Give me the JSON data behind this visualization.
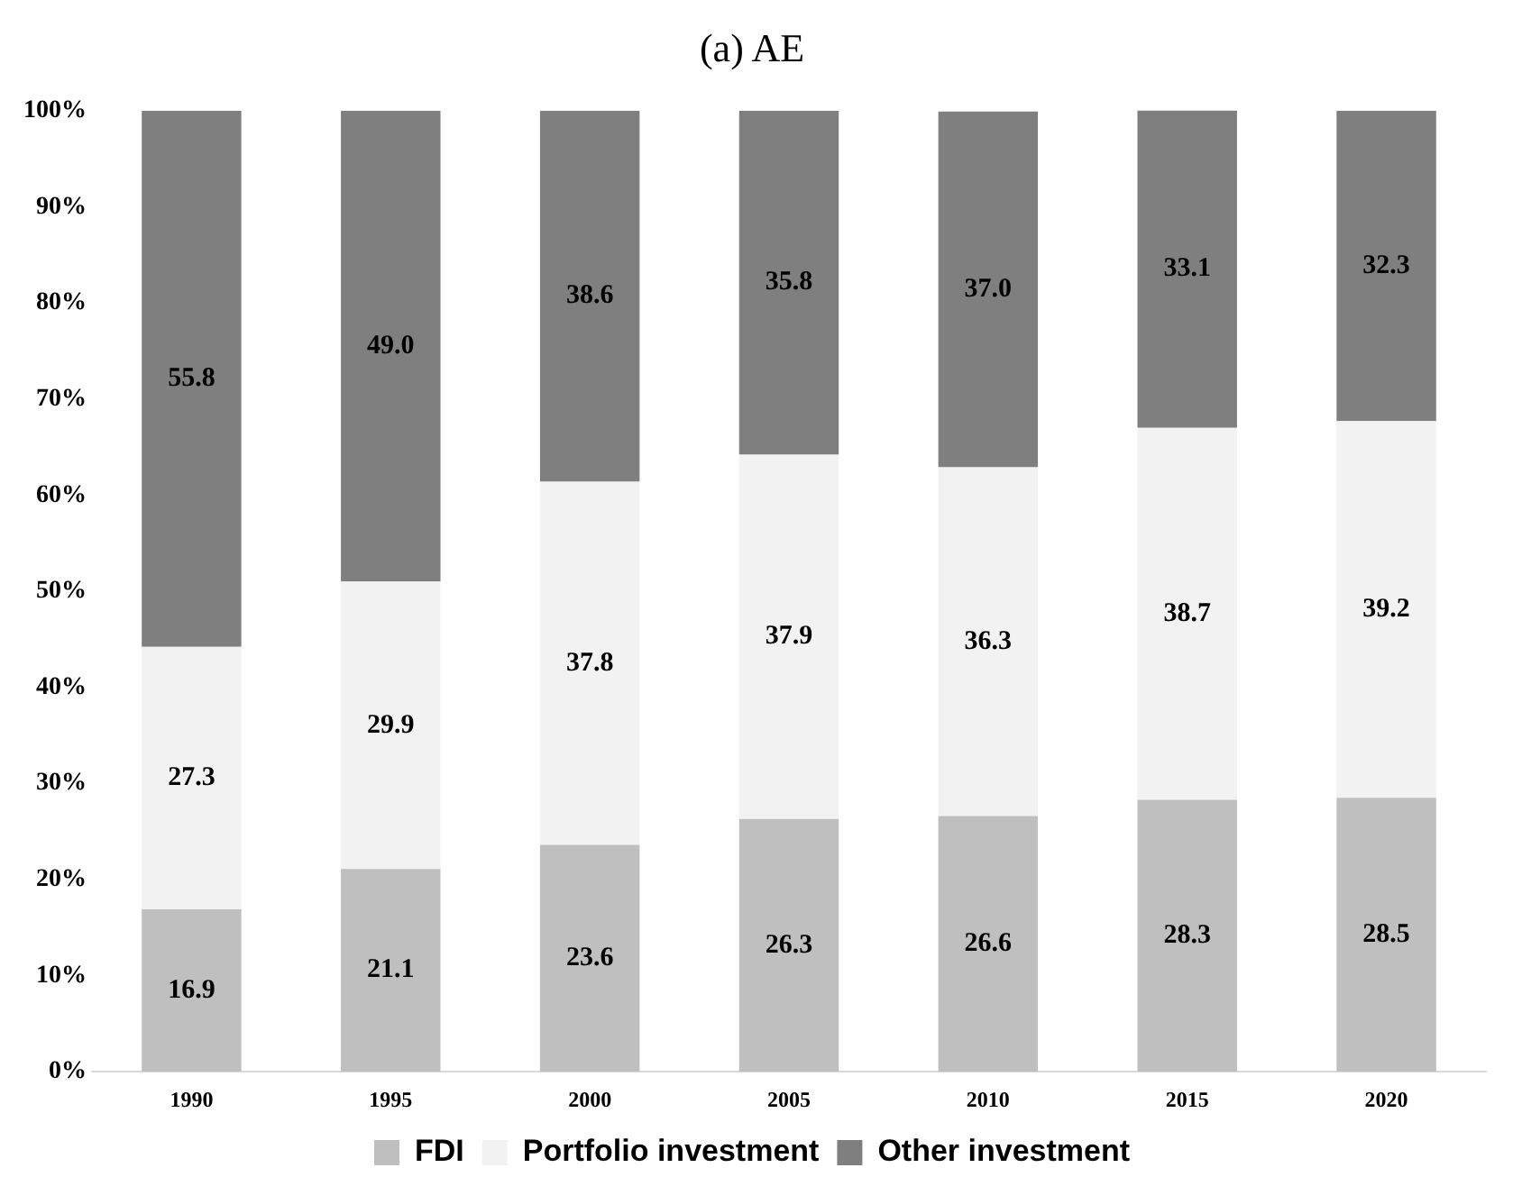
{
  "chart_data": {
    "type": "bar",
    "title": "(a) AE",
    "stacked": true,
    "legend": "bottom",
    "grid": false,
    "categories": [
      "1990",
      "1995",
      "2000",
      "2005",
      "2010",
      "2015",
      "2020"
    ],
    "series": [
      {
        "name": "FDI",
        "color": "#bfbfbf",
        "values": [
          16.9,
          21.1,
          23.6,
          26.3,
          26.6,
          28.3,
          28.5
        ],
        "value_labels": [
          "16.9",
          "21.1",
          "23.6",
          "26.3",
          "26.6",
          "28.3",
          "28.5"
        ]
      },
      {
        "name": "Portfolio investment",
        "color": "#f2f2f2",
        "values": [
          27.3,
          29.9,
          37.8,
          37.9,
          36.3,
          38.7,
          39.2
        ],
        "value_labels": [
          "27.3",
          "29.9",
          "37.8",
          "37.9",
          "36.3",
          "38.7",
          "39.2"
        ]
      },
      {
        "name": "Other investment",
        "color": "#7f7f7f",
        "values": [
          55.8,
          49.0,
          38.6,
          35.8,
          37.0,
          33.1,
          32.3
        ],
        "value_labels": [
          "55.8",
          "49.0",
          "38.6",
          "35.8",
          "37.0",
          "33.1",
          "32.3"
        ]
      }
    ],
    "ylim": [
      0,
      100
    ],
    "yticks": [
      {
        "value": 0,
        "label": "0%"
      },
      {
        "value": 10,
        "label": "10%"
      },
      {
        "value": 20,
        "label": "20%"
      },
      {
        "value": 30,
        "label": "30%"
      },
      {
        "value": 40,
        "label": "40%"
      },
      {
        "value": 50,
        "label": "50%"
      },
      {
        "value": 60,
        "label": "60%"
      },
      {
        "value": 70,
        "label": "70%"
      },
      {
        "value": 80,
        "label": "80%"
      },
      {
        "value": 90,
        "label": "90%"
      },
      {
        "value": 100,
        "label": "100%"
      }
    ]
  }
}
